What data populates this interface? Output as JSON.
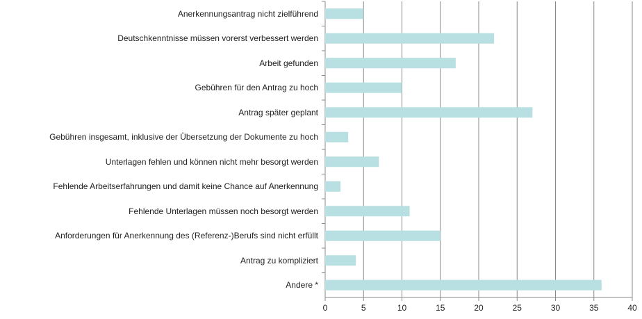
{
  "chart_data": {
    "type": "bar",
    "orientation": "horizontal",
    "categories": [
      "Anerkennungsantrag nicht zielführend",
      "Deutschkenntnisse müssen vorerst verbessert werden",
      "Arbeit gefunden",
      "Gebühren für den Antrag zu hoch",
      "Antrag später geplant",
      "Gebühren insgesamt, inklusive der Übersetzung der Dokumente zu hoch",
      "Unterlagen fehlen und können nicht mehr besorgt werden",
      "Fehlende Arbeitserfahrungen und damit keine Chance auf Anerkennung",
      "Fehlende Unterlagen müssen noch besorgt werden",
      "Anforderungen für Anerkennung des (Referenz-)Berufs sind nicht erfüllt",
      "Antrag zu kompliziert",
      "Andere *"
    ],
    "values": [
      5,
      22,
      17,
      10,
      27,
      3,
      7,
      2,
      11,
      15,
      4,
      36
    ],
    "color": "#b8dfe1",
    "xlim": [
      0,
      40
    ],
    "xticks": [
      0,
      5,
      10,
      15,
      20,
      25,
      30,
      35,
      40
    ],
    "grid": true
  }
}
